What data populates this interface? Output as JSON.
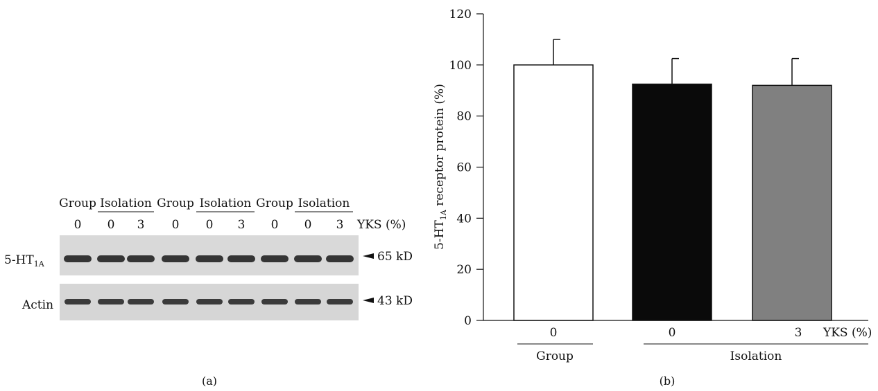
{
  "panel_a": {
    "caption": "(a)",
    "group_headers": [
      "Group",
      "Isolation",
      "Group",
      "Isolation",
      "Group",
      "Isolation"
    ],
    "lane_doses": [
      "0",
      "0",
      "3",
      "0",
      "0",
      "3",
      "0",
      "0",
      "3"
    ],
    "dose_label": "YKS (%)",
    "blot_rows": [
      {
        "label_main": "5-HT",
        "label_sub": "1A",
        "size": "65 kD",
        "band_color": "#222222"
      },
      {
        "label_main": "Actin",
        "label_sub": "",
        "size": "43 kD",
        "band_color": "#2a2a2a"
      }
    ]
  },
  "chart_data": {
    "type": "bar",
    "caption": "(b)",
    "ylabel_main": "5-HT",
    "ylabel_sub": "1A",
    "ylabel_rest": " receptor protein (%)",
    "ylim": [
      0,
      120
    ],
    "yticks": [
      0,
      20,
      40,
      60,
      80,
      100,
      120
    ],
    "dose_label": "YKS (%)",
    "bars": [
      {
        "dose": "0",
        "value": 100,
        "error": 10,
        "color": "#ffffff"
      },
      {
        "dose": "0",
        "value": 92.5,
        "error": 10,
        "color": "#0a0a0a"
      },
      {
        "dose": "3",
        "value": 92,
        "error": 10.5,
        "color": "#808080"
      }
    ],
    "group_labels": [
      "Group",
      "Isolation"
    ]
  }
}
